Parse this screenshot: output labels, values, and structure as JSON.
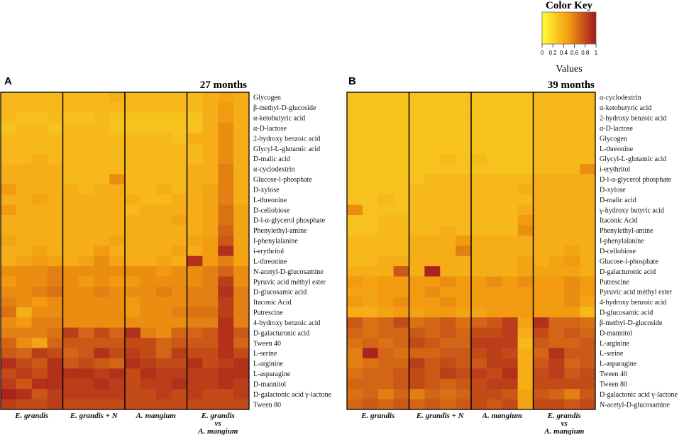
{
  "chart_data": [
    {
      "type": "heatmap",
      "panel": "A",
      "title": "27 months",
      "groups": [
        "E. grandis",
        "E. grandis + N",
        "A. mangium",
        "E. grandis vs A. mangium"
      ],
      "group_label_lines": [
        [
          "E. grandis"
        ],
        [
          "E. grandis + N"
        ],
        [
          "A. mangium"
        ],
        [
          "E. grandis",
          "vs",
          "A. mangium"
        ]
      ],
      "columns_per_group": 4,
      "rows": [
        "Glycogen",
        "β-methyl-D-glucoside",
        "α-ketobutyric acid",
        "α-D-lactose",
        "2-hydroxy benzoic acid",
        "Glycyl-L-glutamic acid",
        "D-malic acid",
        "α-cyclodextrin",
        "Glucose-l-phosphate",
        "D-xylose",
        "L-threonine",
        "D-cellobiose",
        "D-l-α-glycerol phosphate",
        "Phenylethyl-amine",
        "I-phenylalanine",
        "i-erythritol",
        "L-threonine",
        "N-acetyl-D-glucosamine",
        "Pyruvic acid méthyl ester",
        "D-glucosamic acid",
        "Itaconic Acid",
        "Putrescine",
        "4-hydroxy benzoic acid",
        "D-galacturonic acid",
        "Tween 40",
        "L-serine",
        "L-arginine",
        "L-asparagine",
        "D-mannitol",
        "D-galactonic acid  γ-lactone",
        "Tween 80"
      ],
      "values": [
        [
          0.35,
          0.35,
          0.35,
          0.35,
          0.35,
          0.35,
          0.35,
          0.4,
          0.35,
          0.35,
          0.35,
          0.35,
          0.35,
          0.4,
          0.45,
          0.4
        ],
        [
          0.35,
          0.35,
          0.35,
          0.35,
          0.35,
          0.35,
          0.35,
          0.35,
          0.35,
          0.35,
          0.35,
          0.35,
          0.35,
          0.4,
          0.5,
          0.4
        ],
        [
          0.35,
          0.3,
          0.3,
          0.35,
          0.3,
          0.3,
          0.35,
          0.3,
          0.3,
          0.3,
          0.3,
          0.3,
          0.3,
          0.4,
          0.5,
          0.4
        ],
        [
          0.3,
          0.35,
          0.35,
          0.3,
          0.35,
          0.35,
          0.35,
          0.3,
          0.3,
          0.3,
          0.3,
          0.3,
          0.3,
          0.4,
          0.55,
          0.4
        ],
        [
          0.35,
          0.35,
          0.35,
          0.35,
          0.35,
          0.35,
          0.35,
          0.35,
          0.35,
          0.35,
          0.35,
          0.3,
          0.4,
          0.4,
          0.55,
          0.4
        ],
        [
          0.35,
          0.35,
          0.35,
          0.35,
          0.35,
          0.35,
          0.35,
          0.35,
          0.35,
          0.35,
          0.35,
          0.35,
          0.35,
          0.4,
          0.55,
          0.4
        ],
        [
          0.35,
          0.35,
          0.4,
          0.35,
          0.35,
          0.35,
          0.35,
          0.35,
          0.35,
          0.35,
          0.35,
          0.35,
          0.35,
          0.4,
          0.55,
          0.4
        ],
        [
          0.4,
          0.4,
          0.4,
          0.4,
          0.35,
          0.35,
          0.35,
          0.35,
          0.35,
          0.35,
          0.35,
          0.35,
          0.4,
          0.4,
          0.6,
          0.4
        ],
        [
          0.4,
          0.4,
          0.4,
          0.4,
          0.35,
          0.35,
          0.35,
          0.55,
          0.35,
          0.35,
          0.35,
          0.35,
          0.4,
          0.4,
          0.6,
          0.4
        ],
        [
          0.5,
          0.4,
          0.4,
          0.4,
          0.4,
          0.35,
          0.4,
          0.4,
          0.35,
          0.35,
          0.4,
          0.35,
          0.4,
          0.45,
          0.6,
          0.4
        ],
        [
          0.4,
          0.4,
          0.45,
          0.4,
          0.4,
          0.4,
          0.4,
          0.4,
          0.4,
          0.35,
          0.35,
          0.4,
          0.4,
          0.45,
          0.6,
          0.4
        ],
        [
          0.5,
          0.4,
          0.4,
          0.4,
          0.4,
          0.4,
          0.4,
          0.4,
          0.35,
          0.4,
          0.4,
          0.4,
          0.4,
          0.45,
          0.65,
          0.45
        ],
        [
          0.4,
          0.4,
          0.4,
          0.4,
          0.4,
          0.4,
          0.4,
          0.4,
          0.4,
          0.4,
          0.4,
          0.45,
          0.4,
          0.45,
          0.65,
          0.45
        ],
        [
          0.4,
          0.4,
          0.4,
          0.4,
          0.4,
          0.4,
          0.4,
          0.4,
          0.4,
          0.4,
          0.4,
          0.4,
          0.4,
          0.45,
          0.7,
          0.45
        ],
        [
          0.45,
          0.4,
          0.4,
          0.4,
          0.4,
          0.4,
          0.4,
          0.45,
          0.4,
          0.4,
          0.4,
          0.4,
          0.45,
          0.5,
          0.75,
          0.45
        ],
        [
          0.4,
          0.4,
          0.45,
          0.4,
          0.4,
          0.4,
          0.5,
          0.4,
          0.4,
          0.4,
          0.4,
          0.45,
          0.4,
          0.5,
          0.9,
          0.45
        ],
        [
          0.4,
          0.45,
          0.5,
          0.45,
          0.4,
          0.45,
          0.55,
          0.45,
          0.4,
          0.4,
          0.45,
          0.4,
          0.9,
          0.5,
          0.6,
          0.45
        ],
        [
          0.55,
          0.55,
          0.55,
          0.6,
          0.55,
          0.55,
          0.55,
          0.55,
          0.55,
          0.55,
          0.5,
          0.55,
          0.55,
          0.6,
          0.7,
          0.55
        ],
        [
          0.5,
          0.55,
          0.55,
          0.6,
          0.55,
          0.5,
          0.55,
          0.5,
          0.5,
          0.55,
          0.55,
          0.55,
          0.55,
          0.6,
          0.85,
          0.55
        ],
        [
          0.55,
          0.55,
          0.6,
          0.65,
          0.55,
          0.55,
          0.6,
          0.55,
          0.55,
          0.55,
          0.6,
          0.55,
          0.6,
          0.6,
          0.9,
          0.6
        ],
        [
          0.6,
          0.55,
          0.5,
          0.55,
          0.55,
          0.55,
          0.55,
          0.55,
          0.5,
          0.55,
          0.55,
          0.55,
          0.6,
          0.6,
          0.85,
          0.6
        ],
        [
          0.65,
          0.4,
          0.55,
          0.55,
          0.55,
          0.55,
          0.55,
          0.55,
          0.5,
          0.55,
          0.55,
          0.6,
          0.65,
          0.65,
          0.85,
          0.6
        ],
        [
          0.55,
          0.5,
          0.6,
          0.6,
          0.55,
          0.55,
          0.55,
          0.55,
          0.55,
          0.55,
          0.55,
          0.55,
          0.6,
          0.6,
          0.9,
          0.6
        ],
        [
          0.6,
          0.6,
          0.6,
          0.65,
          0.85,
          0.7,
          0.8,
          0.7,
          0.9,
          0.6,
          0.55,
          0.7,
          0.7,
          0.75,
          0.9,
          0.75
        ],
        [
          0.7,
          0.55,
          0.45,
          0.7,
          0.75,
          0.75,
          0.75,
          0.75,
          0.8,
          0.8,
          0.7,
          0.75,
          0.75,
          0.75,
          0.9,
          0.7
        ],
        [
          0.75,
          0.7,
          0.85,
          0.8,
          0.7,
          0.75,
          0.9,
          0.8,
          0.85,
          0.8,
          0.7,
          0.85,
          0.8,
          0.8,
          0.9,
          0.8
        ],
        [
          0.9,
          0.8,
          0.75,
          0.9,
          0.75,
          0.8,
          0.75,
          0.7,
          0.9,
          0.85,
          0.8,
          0.8,
          0.9,
          0.8,
          0.85,
          0.9
        ],
        [
          0.8,
          0.85,
          0.8,
          0.9,
          0.9,
          0.9,
          0.85,
          0.9,
          0.8,
          0.9,
          0.85,
          0.85,
          0.85,
          0.85,
          0.9,
          0.9
        ],
        [
          0.85,
          0.75,
          0.9,
          0.9,
          0.85,
          0.85,
          0.9,
          0.85,
          0.8,
          0.85,
          0.85,
          0.9,
          0.85,
          0.85,
          0.9,
          0.85
        ],
        [
          0.95,
          0.9,
          0.75,
          0.85,
          0.85,
          0.85,
          0.85,
          0.85,
          0.8,
          0.8,
          0.85,
          0.8,
          0.85,
          0.8,
          0.8,
          0.85
        ],
        [
          0.85,
          0.8,
          0.8,
          0.85,
          0.8,
          0.8,
          0.8,
          0.8,
          0.8,
          0.8,
          0.8,
          0.8,
          0.8,
          0.8,
          0.8,
          0.8
        ]
      ]
    },
    {
      "type": "heatmap",
      "panel": "B",
      "title": "39 months",
      "groups": [
        "E. grandis",
        "E. grandis + N",
        "A. mangium",
        "E. grandis vs A. mangium"
      ],
      "group_label_lines": [
        [
          "E. grandis"
        ],
        [
          "E. grandis + N"
        ],
        [
          "A. mangium"
        ],
        [
          "E. grandis",
          "vs",
          "A. mangium"
        ]
      ],
      "columns_per_group": 4,
      "rows": [
        "α-cyclodextrin",
        "α-ketobutyric acid",
        "2-hydroxy benzoic acid",
        "α-D-lactose",
        "Glycogen",
        "L-threonine",
        "Glycyl-L-glutamic acid",
        "i-erythritol",
        "D-l-α-glycerol phosphate",
        "D-xylose",
        "D-malic acid",
        "γ-hydroxy butyric acid",
        "Itaconic Acid",
        "Phenylethyl-amine",
        "I-phenylalanine",
        "D-cellobiose",
        "Glucose-l-phosphate",
        "D-galacturonic acid",
        "Putrescine",
        "Pyruvic acid méthyl ester",
        "4-hydroxy benzoic acid",
        "D-glucosamic acid",
        "β-methyl-D-glucoside",
        "D-mannitol",
        "L-arginine",
        "L-serine",
        "L-asparagine",
        "Tween 40",
        "Tween 80",
        "D-galactonic acid  γ-lactone",
        "N-acetyl-D-glucosamine"
      ],
      "values": [
        [
          0.3,
          0.3,
          0.3,
          0.3,
          0.3,
          0.3,
          0.3,
          0.3,
          0.3,
          0.3,
          0.3,
          0.3,
          0.35,
          0.35,
          0.35,
          0.35
        ],
        [
          0.3,
          0.3,
          0.3,
          0.3,
          0.3,
          0.3,
          0.3,
          0.3,
          0.3,
          0.3,
          0.3,
          0.3,
          0.35,
          0.35,
          0.35,
          0.35
        ],
        [
          0.3,
          0.3,
          0.3,
          0.3,
          0.3,
          0.3,
          0.3,
          0.3,
          0.3,
          0.3,
          0.3,
          0.3,
          0.35,
          0.35,
          0.35,
          0.35
        ],
        [
          0.3,
          0.3,
          0.3,
          0.3,
          0.3,
          0.3,
          0.3,
          0.3,
          0.3,
          0.3,
          0.3,
          0.3,
          0.35,
          0.35,
          0.35,
          0.35
        ],
        [
          0.3,
          0.3,
          0.3,
          0.3,
          0.3,
          0.3,
          0.3,
          0.3,
          0.3,
          0.3,
          0.3,
          0.3,
          0.35,
          0.35,
          0.35,
          0.35
        ],
        [
          0.3,
          0.3,
          0.3,
          0.3,
          0.3,
          0.3,
          0.3,
          0.3,
          0.3,
          0.3,
          0.3,
          0.3,
          0.35,
          0.35,
          0.35,
          0.35
        ],
        [
          0.3,
          0.3,
          0.3,
          0.3,
          0.3,
          0.3,
          0.35,
          0.3,
          0.35,
          0.3,
          0.3,
          0.3,
          0.35,
          0.35,
          0.35,
          0.35
        ],
        [
          0.3,
          0.3,
          0.3,
          0.3,
          0.3,
          0.3,
          0.3,
          0.3,
          0.3,
          0.3,
          0.3,
          0.3,
          0.35,
          0.35,
          0.35,
          0.55
        ],
        [
          0.3,
          0.3,
          0.3,
          0.3,
          0.3,
          0.35,
          0.35,
          0.35,
          0.35,
          0.35,
          0.35,
          0.35,
          0.4,
          0.4,
          0.4,
          0.4
        ],
        [
          0.3,
          0.3,
          0.3,
          0.3,
          0.35,
          0.35,
          0.35,
          0.35,
          0.35,
          0.35,
          0.35,
          0.4,
          0.4,
          0.4,
          0.4,
          0.4
        ],
        [
          0.3,
          0.3,
          0.35,
          0.3,
          0.35,
          0.35,
          0.35,
          0.35,
          0.35,
          0.35,
          0.35,
          0.35,
          0.4,
          0.4,
          0.4,
          0.4
        ],
        [
          0.55,
          0.3,
          0.3,
          0.3,
          0.35,
          0.35,
          0.35,
          0.35,
          0.35,
          0.35,
          0.35,
          0.4,
          0.4,
          0.4,
          0.4,
          0.4
        ],
        [
          0.3,
          0.3,
          0.35,
          0.35,
          0.35,
          0.35,
          0.35,
          0.35,
          0.35,
          0.35,
          0.35,
          0.5,
          0.4,
          0.4,
          0.4,
          0.4
        ],
        [
          0.3,
          0.3,
          0.35,
          0.35,
          0.35,
          0.35,
          0.4,
          0.35,
          0.35,
          0.35,
          0.35,
          0.55,
          0.4,
          0.4,
          0.4,
          0.4
        ],
        [
          0.35,
          0.35,
          0.35,
          0.35,
          0.4,
          0.4,
          0.4,
          0.5,
          0.4,
          0.4,
          0.4,
          0.4,
          0.4,
          0.4,
          0.4,
          0.4
        ],
        [
          0.35,
          0.35,
          0.35,
          0.35,
          0.4,
          0.4,
          0.4,
          0.6,
          0.4,
          0.4,
          0.4,
          0.4,
          0.4,
          0.4,
          0.45,
          0.4
        ],
        [
          0.35,
          0.35,
          0.4,
          0.4,
          0.4,
          0.4,
          0.4,
          0.4,
          0.4,
          0.4,
          0.4,
          0.45,
          0.4,
          0.45,
          0.5,
          0.4
        ],
        [
          0.4,
          0.4,
          0.4,
          0.75,
          0.4,
          0.95,
          0.4,
          0.4,
          0.4,
          0.4,
          0.4,
          0.45,
          0.45,
          0.45,
          0.45,
          0.4
        ],
        [
          0.5,
          0.45,
          0.5,
          0.5,
          0.5,
          0.5,
          0.55,
          0.5,
          0.5,
          0.55,
          0.5,
          0.55,
          0.5,
          0.5,
          0.55,
          0.5
        ],
        [
          0.45,
          0.45,
          0.5,
          0.5,
          0.5,
          0.55,
          0.5,
          0.5,
          0.5,
          0.5,
          0.5,
          0.5,
          0.5,
          0.5,
          0.55,
          0.5
        ],
        [
          0.5,
          0.45,
          0.5,
          0.55,
          0.5,
          0.5,
          0.55,
          0.5,
          0.5,
          0.5,
          0.5,
          0.5,
          0.5,
          0.5,
          0.55,
          0.45
        ],
        [
          0.4,
          0.4,
          0.45,
          0.5,
          0.45,
          0.5,
          0.5,
          0.45,
          0.45,
          0.5,
          0.5,
          0.5,
          0.5,
          0.5,
          0.5,
          0.35
        ],
        [
          0.75,
          0.65,
          0.7,
          0.8,
          0.65,
          0.7,
          0.75,
          0.65,
          0.7,
          0.75,
          0.85,
          0.45,
          0.9,
          0.7,
          0.7,
          0.65
        ],
        [
          0.7,
          0.65,
          0.7,
          0.7,
          0.75,
          0.7,
          0.75,
          0.7,
          0.8,
          0.8,
          0.85,
          0.4,
          0.8,
          0.7,
          0.75,
          0.7
        ],
        [
          0.65,
          0.7,
          0.65,
          0.7,
          0.8,
          0.75,
          0.7,
          0.7,
          0.85,
          0.85,
          0.85,
          0.35,
          0.75,
          0.7,
          0.7,
          0.75
        ],
        [
          0.6,
          0.95,
          0.7,
          0.65,
          0.7,
          0.7,
          0.75,
          0.75,
          0.8,
          0.85,
          0.8,
          0.4,
          0.7,
          0.9,
          0.75,
          0.75
        ],
        [
          0.6,
          0.65,
          0.7,
          0.7,
          0.85,
          0.75,
          0.8,
          0.75,
          0.75,
          0.85,
          0.85,
          0.4,
          0.75,
          0.85,
          0.7,
          0.75
        ],
        [
          0.65,
          0.7,
          0.7,
          0.75,
          0.8,
          0.75,
          0.85,
          0.8,
          0.85,
          0.8,
          0.9,
          0.4,
          0.8,
          0.85,
          0.75,
          0.8
        ],
        [
          0.7,
          0.7,
          0.7,
          0.75,
          0.8,
          0.75,
          0.7,
          0.75,
          0.8,
          0.85,
          0.85,
          0.4,
          0.8,
          0.8,
          0.8,
          0.8
        ],
        [
          0.65,
          0.7,
          0.6,
          0.7,
          0.6,
          0.7,
          0.65,
          0.7,
          0.8,
          0.8,
          0.75,
          0.45,
          0.75,
          0.7,
          0.6,
          0.75
        ],
        [
          0.7,
          0.75,
          0.7,
          0.75,
          0.7,
          0.75,
          0.7,
          0.75,
          0.8,
          0.75,
          0.8,
          0.45,
          0.8,
          0.8,
          0.75,
          0.8
        ]
      ]
    }
  ],
  "color_key": {
    "title": "Color Key",
    "xlabel": "Values",
    "ticks": [
      "0",
      "0.2",
      "0.4",
      "0.6",
      "0.8",
      "1"
    ],
    "range": [
      0,
      1
    ],
    "low_color": "#ffff33",
    "mid_color": "#f29a10",
    "high_color": "#a3161e"
  }
}
